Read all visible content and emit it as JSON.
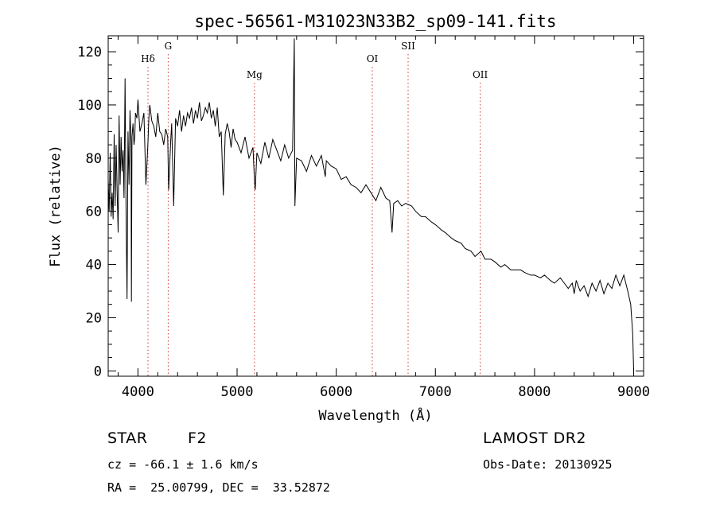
{
  "chart_data": {
    "type": "line",
    "title": "spec-56561-M31023N33B2_sp09-141.fits",
    "xlabel": "Wavelength (Å)",
    "ylabel": "Flux (relative)",
    "xlim": [
      3700,
      9100
    ],
    "ylim": [
      -2,
      126
    ],
    "xticks": [
      4000,
      5000,
      6000,
      7000,
      8000,
      9000
    ],
    "xtick_labels": [
      "4000",
      "5000",
      "6000",
      "7000",
      "8000",
      "9000"
    ],
    "yticks": [
      0,
      20,
      40,
      60,
      80,
      100,
      120
    ],
    "ytick_labels": [
      "0",
      "20",
      "40",
      "60",
      "80",
      "100",
      "120"
    ],
    "grid": false,
    "series": [
      {
        "name": "flux",
        "x": [
          3700,
          3710,
          3720,
          3730,
          3740,
          3750,
          3760,
          3770,
          3780,
          3790,
          3800,
          3810,
          3820,
          3830,
          3840,
          3850,
          3860,
          3870,
          3880,
          3890,
          3900,
          3910,
          3920,
          3930,
          3934,
          3940,
          3950,
          3960,
          3968,
          3975,
          3990,
          4000,
          4020,
          4040,
          4060,
          4080,
          4101,
          4110,
          4120,
          4140,
          4160,
          4180,
          4200,
          4220,
          4240,
          4260,
          4280,
          4300,
          4310,
          4330,
          4340,
          4360,
          4380,
          4400,
          4420,
          4440,
          4460,
          4480,
          4500,
          4520,
          4540,
          4560,
          4580,
          4600,
          4620,
          4640,
          4660,
          4680,
          4700,
          4720,
          4740,
          4760,
          4780,
          4800,
          4820,
          4840,
          4861,
          4880,
          4900,
          4920,
          4940,
          4960,
          4980,
          5000,
          5040,
          5080,
          5120,
          5160,
          5175,
          5183,
          5200,
          5240,
          5280,
          5320,
          5360,
          5400,
          5440,
          5480,
          5520,
          5560,
          5577,
          5583,
          5600,
          5650,
          5700,
          5750,
          5800,
          5850,
          5890,
          5900,
          5950,
          6000,
          6050,
          6100,
          6150,
          6200,
          6250,
          6300,
          6350,
          6400,
          6450,
          6500,
          6540,
          6563,
          6580,
          6620,
          6660,
          6700,
          6760,
          6800,
          6860,
          6900,
          6960,
          7000,
          7060,
          7100,
          7160,
          7200,
          7260,
          7300,
          7360,
          7400,
          7460,
          7500,
          7560,
          7600,
          7660,
          7700,
          7760,
          7800,
          7860,
          7900,
          7960,
          8000,
          8060,
          8100,
          8160,
          8200,
          8260,
          8300,
          8340,
          8380,
          8400,
          8420,
          8460,
          8500,
          8540,
          8580,
          8620,
          8660,
          8700,
          8740,
          8780,
          8820,
          8860,
          8900,
          8940,
          8970,
          8990,
          9000
        ],
        "values": [
          72,
          60,
          82,
          58,
          67,
          57,
          89,
          62,
          85,
          68,
          52,
          96,
          70,
          88,
          75,
          83,
          65,
          110,
          62,
          27,
          90,
          70,
          98,
          86,
          26,
          88,
          93,
          85,
          88,
          97,
          95,
          102,
          90,
          93,
          97,
          70,
          86,
          95,
          100,
          94,
          92,
          88,
          97,
          90,
          89,
          85,
          91,
          88,
          68,
          86,
          93,
          62,
          95,
          92,
          98,
          90,
          96,
          92,
          97,
          95,
          99,
          93,
          98,
          95,
          101,
          94,
          96,
          99,
          97,
          101,
          95,
          98,
          92,
          99,
          88,
          90,
          66,
          89,
          93,
          90,
          84,
          91,
          87,
          86,
          82,
          88,
          80,
          84,
          72,
          68,
          82,
          78,
          86,
          80,
          87,
          83,
          79,
          85,
          80,
          83,
          125,
          62,
          80,
          79,
          75,
          81,
          77,
          81,
          73,
          79,
          77,
          76,
          72,
          73,
          70,
          69,
          67,
          70,
          67,
          64,
          69,
          65,
          64,
          52,
          63,
          64,
          62,
          63,
          62,
          60,
          58,
          58,
          56,
          55,
          53,
          52,
          50,
          49,
          48,
          46,
          45,
          43,
          45,
          42,
          42,
          41,
          39,
          40,
          38,
          38,
          38,
          37,
          36,
          36,
          35,
          36,
          34,
          33,
          35,
          33,
          31,
          33,
          29,
          34,
          30,
          32,
          28,
          33,
          30,
          34,
          29,
          33,
          31,
          36,
          32,
          36,
          30,
          25,
          14,
          0
        ]
      }
    ],
    "annotations": [
      {
        "label": "Hδ",
        "x": 4101
      },
      {
        "label": "G",
        "x": 4305
      },
      {
        "label": "Mg",
        "x": 5175
      },
      {
        "label": "OI",
        "x": 6364
      },
      {
        "label": "SII",
        "x": 6725
      },
      {
        "label": "OII",
        "x": 7452
      }
    ]
  },
  "info": {
    "object_type": "STAR",
    "spectral_class": "F2",
    "survey": "LAMOST DR2",
    "redshift": "cz = -66.1 ± 1.6 km/s",
    "obs_date": "Obs-Date: 20130925",
    "coordinates": "RA =  25.00799, DEC =  33.52872"
  }
}
